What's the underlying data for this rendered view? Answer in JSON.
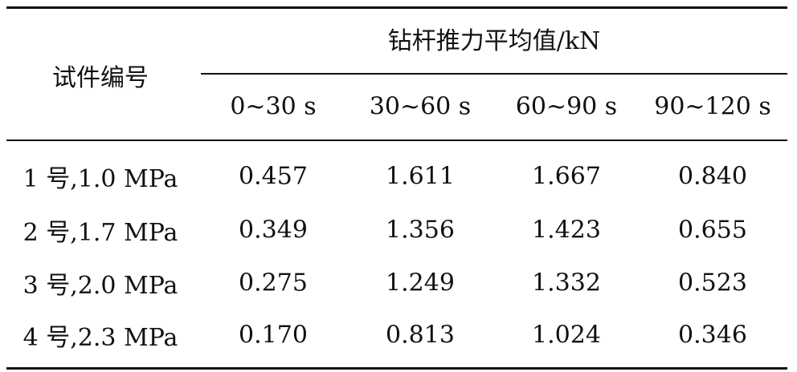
{
  "table": {
    "header": {
      "row_label": "试件编号",
      "group_label": "钻杆推力平均值/kN",
      "columns": [
        "0~30 s",
        "30~60 s",
        "60~90 s",
        "90~120 s"
      ]
    },
    "rows": [
      [
        "1 号,1.0 MPa",
        "0.457",
        "1.611",
        "1.667",
        "0.840"
      ],
      [
        "2 号,1.7 MPa",
        "0.349",
        "1.356",
        "1.423",
        "0.655"
      ],
      [
        "3 号,2.0 MPa",
        "0.275",
        "1.249",
        "1.332",
        "0.523"
      ],
      [
        "4 号,2.3 MPa",
        "0.170",
        "0.813",
        "1.024",
        "0.346"
      ]
    ]
  }
}
